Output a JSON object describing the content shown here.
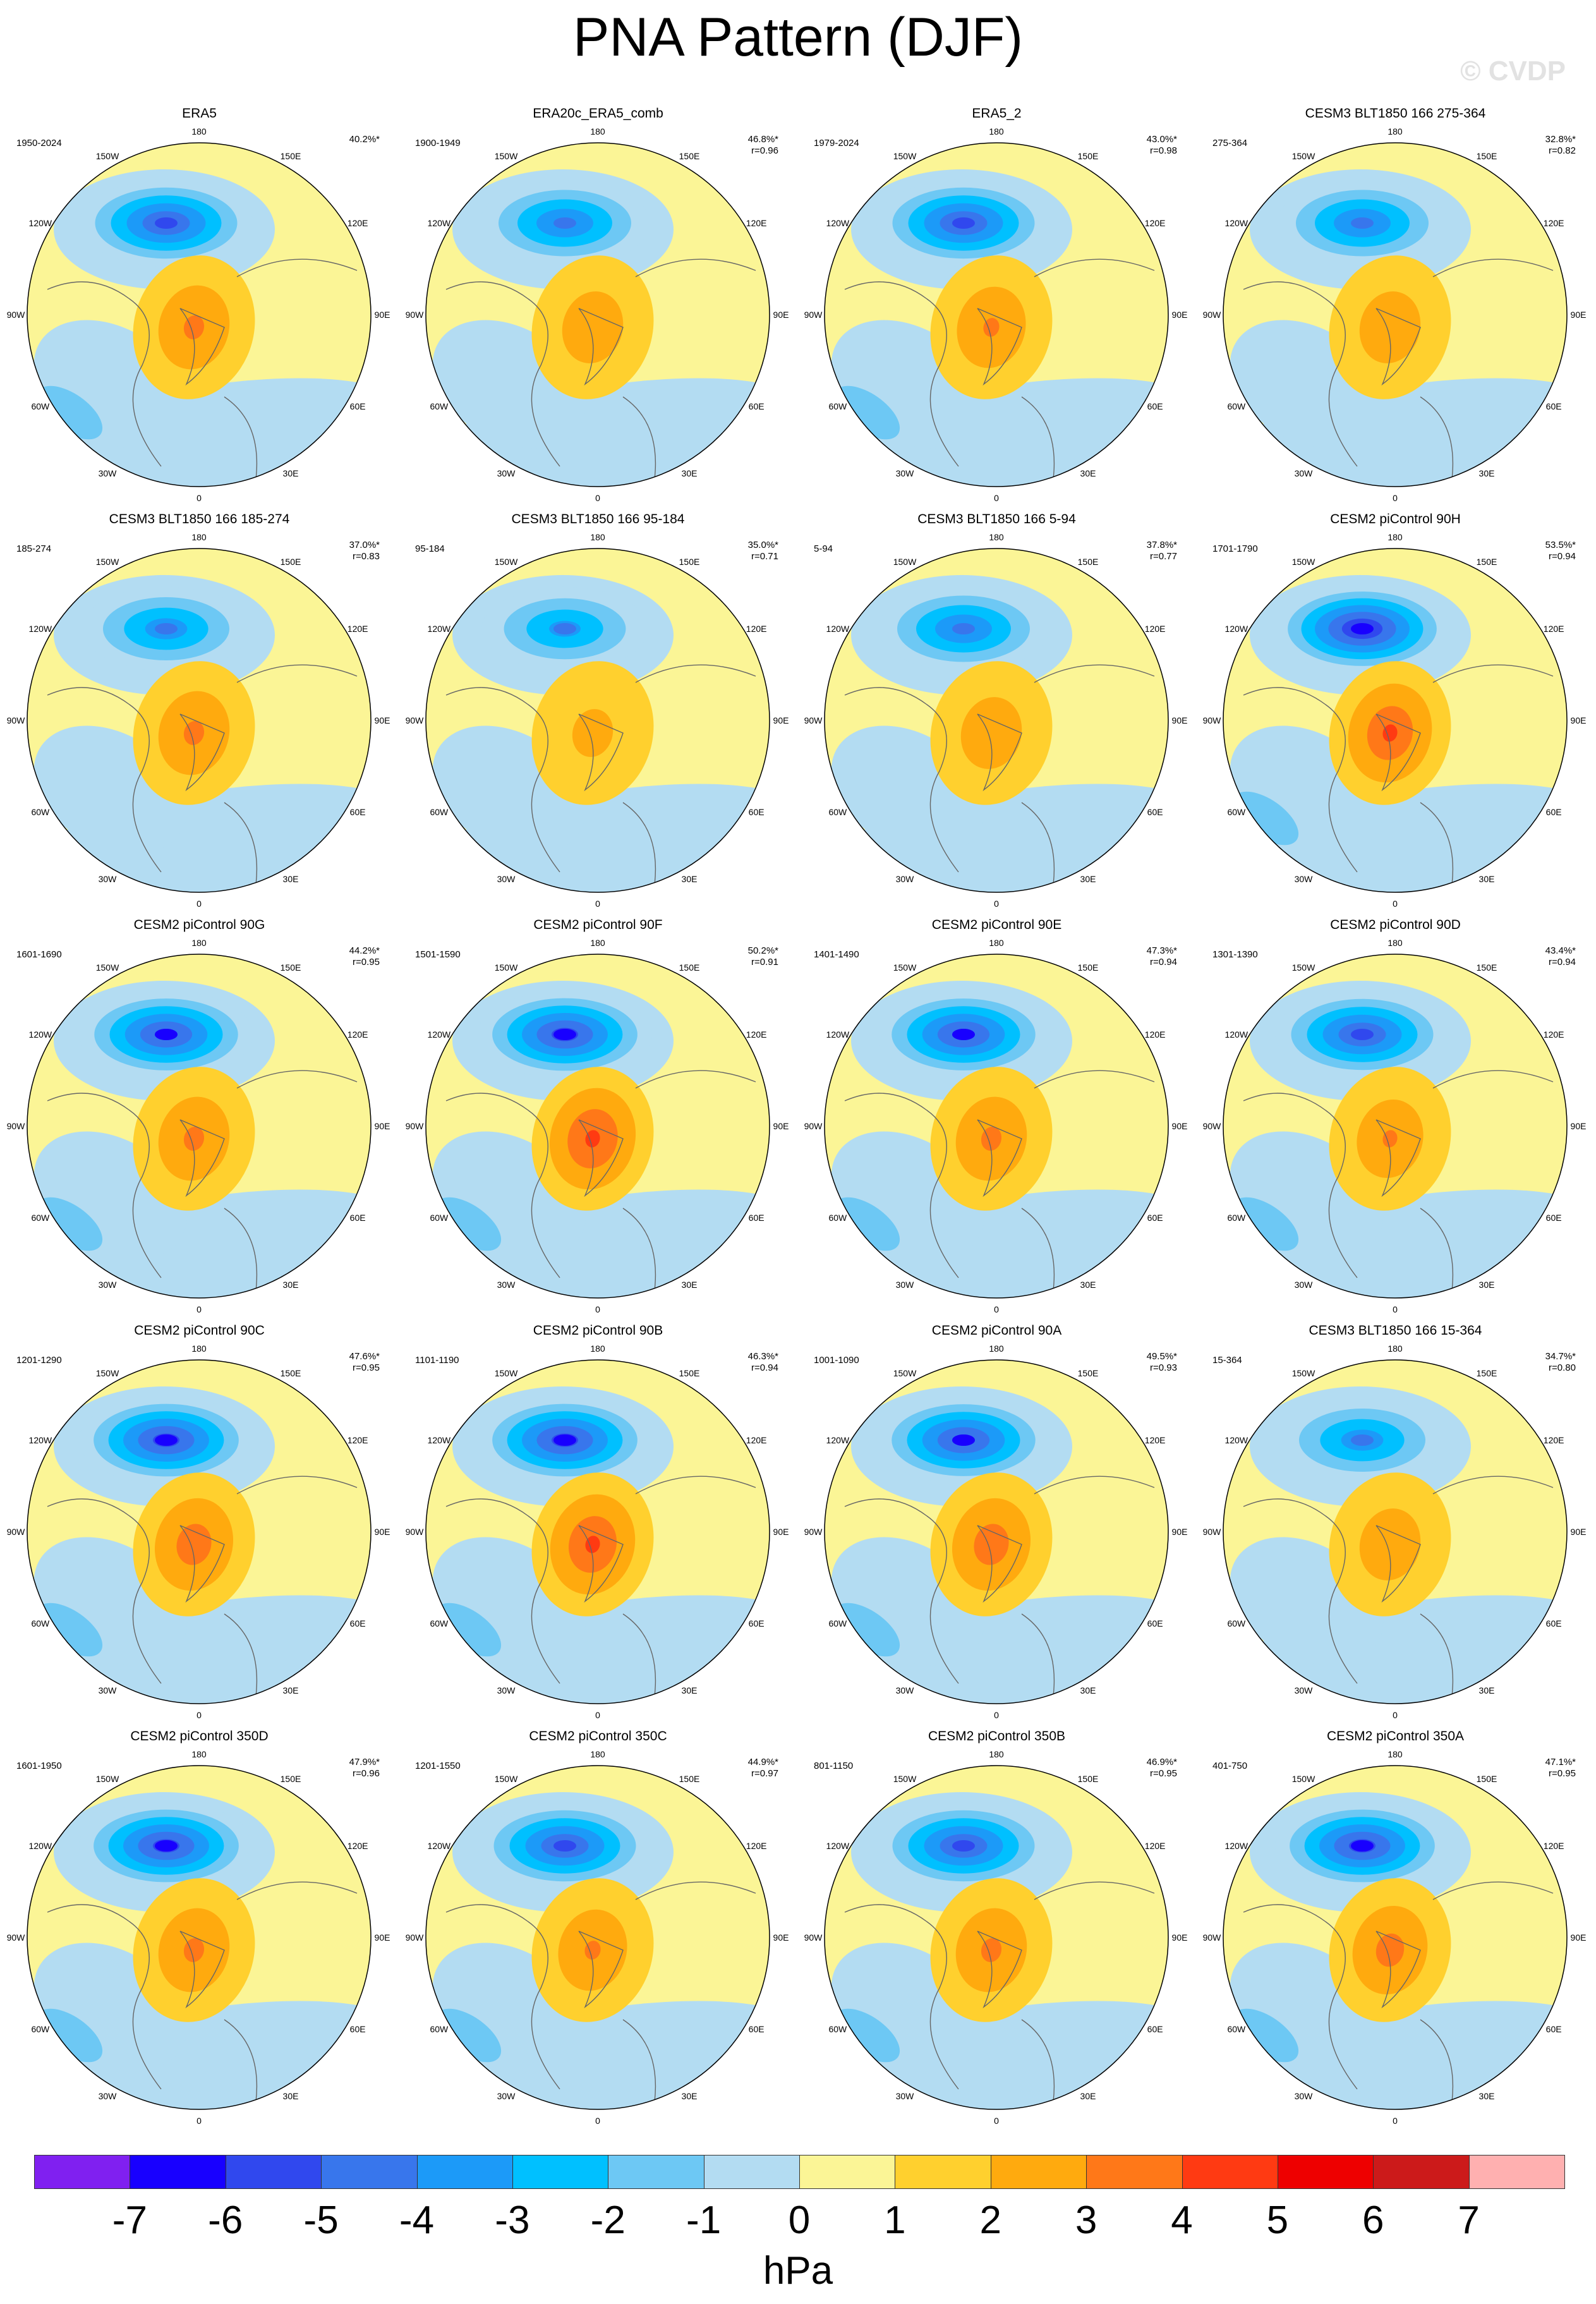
{
  "title": "PNA Pattern (DJF)",
  "watermark": "© CVDP",
  "chart_data": {
    "type": "polar-contour-map",
    "variable": "PNA Pattern (DJF) sea level pressure regression",
    "units": "hPa",
    "contour_levels": [
      -7,
      -6,
      -5,
      -4,
      -3,
      -2,
      -1,
      0,
      1,
      2,
      3,
      4,
      5,
      6,
      7
    ],
    "colorbar_colors": [
      "#8020f0",
      "#1800ff",
      "#3048ee",
      "#3876ec",
      "#1c9af8",
      "#00c0ff",
      "#6dc8f4",
      "#b3dcf2",
      "#fbf596",
      "#ffd02e",
      "#ffaa0e",
      "#ff7818",
      "#ff3a12",
      "#ee0000",
      "#cc1a1a",
      "#ffb0b0"
    ],
    "longitude_labels": [
      "180",
      "150E",
      "120E",
      "90E",
      "60E",
      "30E",
      "0",
      "30W",
      "60W",
      "90W",
      "120W",
      "150W"
    ],
    "panels": [
      {
        "title": "ERA5",
        "years": "1950-2024",
        "pct": "40.2%*",
        "r": "",
        "low": -6.0,
        "high": 2.4
      },
      {
        "title": "ERA20c_ERA5_comb",
        "years": "1900-1949",
        "pct": "46.8%*",
        "r": "r=0.96",
        "low": -5.0,
        "high": 2.0
      },
      {
        "title": "ERA5_2",
        "years": "1979-2024",
        "pct": "43.0%*",
        "r": "r=0.98",
        "low": -6.0,
        "high": 2.3
      },
      {
        "title": "CESM3 BLT1850 166 275-364",
        "years": "275-364",
        "pct": "32.8%*",
        "r": "r=0.82",
        "low": -5.0,
        "high": 2.0
      },
      {
        "title": "CESM3 BLT1850 166 185-274",
        "years": "185-274",
        "pct": "37.0%*",
        "r": "r=0.83",
        "low": -4.5,
        "high": 2.4
      },
      {
        "title": "CESM3 BLT1850 166 95-184",
        "years": "95-184",
        "pct": "35.0%*",
        "r": "r=0.71",
        "low": -4.2,
        "high": 1.5
      },
      {
        "title": "CESM3 BLT1850 166 5-94",
        "years": "5-94",
        "pct": "37.8%*",
        "r": "r=0.77",
        "low": -5.0,
        "high": 2.0
      },
      {
        "title": "CESM2 piControl 90H",
        "years": "1701-1790",
        "pct": "53.5%*",
        "r": "r=0.94",
        "low": -7.0,
        "high": 3.2
      },
      {
        "title": "CESM2 piControl 90G",
        "years": "1601-1690",
        "pct": "44.2%*",
        "r": "r=0.95",
        "low": -6.2,
        "high": 2.4
      },
      {
        "title": "CESM2 piControl 90F",
        "years": "1501-1590",
        "pct": "50.2%*",
        "r": "r=0.91",
        "low": -6.4,
        "high": 3.4
      },
      {
        "title": "CESM2 piControl 90E",
        "years": "1401-1490",
        "pct": "47.3%*",
        "r": "r=0.94",
        "low": -6.2,
        "high": 2.4
      },
      {
        "title": "CESM2 piControl 90D",
        "years": "1301-1390",
        "pct": "43.4%*",
        "r": "r=0.94",
        "low": -6.0,
        "high": 2.2
      },
      {
        "title": "CESM2 piControl 90C",
        "years": "1201-1290",
        "pct": "47.6%*",
        "r": "r=0.95",
        "low": -6.4,
        "high": 2.8
      },
      {
        "title": "CESM2 piControl 90B",
        "years": "1101-1190",
        "pct": "46.3%*",
        "r": "r=0.94",
        "low": -6.4,
        "high": 3.3
      },
      {
        "title": "CESM2 piControl 90A",
        "years": "1001-1090",
        "pct": "49.5%*",
        "r": "r=0.93",
        "low": -6.2,
        "high": 2.8
      },
      {
        "title": "CESM3 BLT1850 166 15-364",
        "years": "15-364",
        "pct": "34.7%*",
        "r": "r=0.80",
        "low": -4.5,
        "high": 2.0
      },
      {
        "title": "CESM2 piControl 350D",
        "years": "1601-1950",
        "pct": "47.9%*",
        "r": "r=0.96",
        "low": -6.4,
        "high": 2.4
      },
      {
        "title": "CESM2 piControl 350C",
        "years": "1201-1550",
        "pct": "44.9%*",
        "r": "r=0.97",
        "low": -6.0,
        "high": 2.3
      },
      {
        "title": "CESM2 piControl 350B",
        "years": "801-1150",
        "pct": "46.9%*",
        "r": "r=0.95",
        "low": -6.0,
        "high": 2.4
      },
      {
        "title": "CESM2 piControl 350A",
        "years": "401-750",
        "pct": "47.1%*",
        "r": "r=0.95",
        "low": -6.4,
        "high": 2.6
      }
    ],
    "colorbar": {
      "tick_labels": [
        "-7",
        "-6",
        "-5",
        "-4",
        "-3",
        "-2",
        "-1",
        "0",
        "1",
        "2",
        "3",
        "4",
        "5",
        "6",
        "7"
      ],
      "unit_label": "hPa"
    }
  }
}
